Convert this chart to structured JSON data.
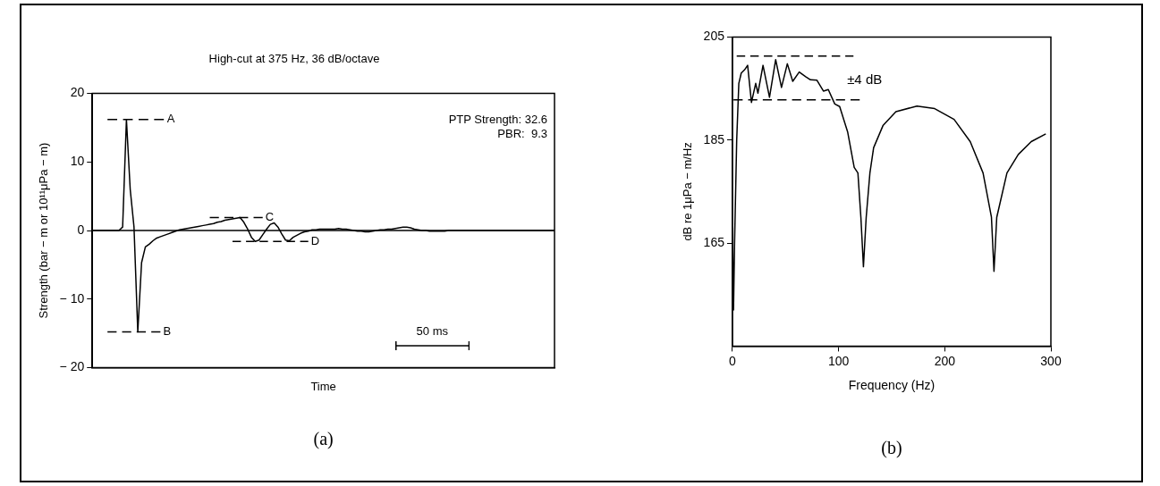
{
  "chart_data": [
    {
      "type": "line",
      "title": "High-cut at 375 Hz, 36 dB/octave",
      "xlabel": "Time",
      "ylabel": "Strength (bar − m or 10¹¹μPa − m)",
      "categories": [
        null,
        null,
        null,
        null,
        null,
        null,
        null,
        null,
        null,
        null,
        null,
        null,
        null,
        null,
        null,
        null,
        null,
        null,
        null,
        null,
        null,
        null,
        null,
        null,
        null,
        null,
        null,
        null,
        null,
        null,
        null,
        null,
        null,
        null,
        null,
        null,
        null,
        null,
        null,
        null,
        null,
        null,
        null,
        null,
        null,
        null,
        null,
        null,
        null,
        null,
        null,
        null,
        null,
        null,
        null,
        null,
        null,
        null,
        null,
        null,
        null,
        null,
        null,
        null,
        null,
        null,
        null,
        null,
        null,
        null,
        null,
        null,
        null,
        null,
        null,
        null,
        null,
        null,
        null,
        null,
        null,
        null,
        null,
        null,
        null,
        null,
        null,
        null,
        null,
        null,
        null,
        null,
        null,
        null,
        null,
        null,
        null,
        null,
        null,
        null,
        null,
        null,
        null,
        null,
        null,
        null,
        null,
        null,
        null,
        null,
        null,
        null,
        null,
        null,
        null,
        null,
        null,
        null,
        null,
        null,
        null,
        null,
        null
      ],
      "series": [
        {
          "color": "#000000",
          "values": [
            0,
            0,
            0,
            0,
            0,
            0,
            0,
            0,
            0.5,
            16.2,
            6,
            0.5,
            -14.8,
            -4.7,
            -2.4,
            -2,
            -1.5,
            -1.1,
            -0.9,
            -0.7,
            -0.5,
            -0.3,
            -0.1,
            0.1,
            0.2,
            0.3,
            0.4,
            0.5,
            0.6,
            0.7,
            0.8,
            0.9,
            1,
            1.2,
            1.3,
            1.5,
            1.6,
            1.7,
            1.8,
            1.9,
            1.2,
            0.2,
            -1,
            -1.6,
            -1.4,
            -0.6,
            0.2,
            0.9,
            1.1,
            0.5,
            -0.5,
            -1.4,
            -1.5,
            -1,
            -0.7,
            -0.4,
            -0.2,
            -0.1,
            0.1,
            0.1,
            0.2,
            0.2,
            0.2,
            0.2,
            0.2,
            0.3,
            0.2,
            0.2,
            0.1,
            0,
            -0.1,
            -0.1,
            -0.2,
            -0.2,
            -0.1,
            0,
            0.1,
            0.1,
            0.2,
            0.2,
            0.3,
            0.4,
            0.5,
            0.5,
            0.4,
            0.2,
            0.1,
            0,
            0,
            -0.1,
            -0.1,
            -0.1,
            -0.1,
            -0.1,
            0,
            0,
            0,
            0,
            0,
            0,
            0,
            0,
            0,
            0,
            0,
            0,
            0,
            0,
            0,
            0,
            0,
            0,
            0,
            0,
            0,
            0,
            0,
            0,
            0,
            0,
            0,
            0,
            0
          ]
        },
        {
          "name": "A",
          "color": "#000000",
          "line_style": "dashed",
          "values": [
            null,
            null,
            null,
            null,
            16.2,
            16.2,
            16.2,
            16.2,
            16.2,
            16.2,
            16.2,
            16.2,
            16.2,
            16.2,
            16.2,
            16.2,
            16.2,
            16.2,
            16.2,
            16.2,
            null,
            null,
            null,
            null,
            null,
            null,
            null,
            null,
            null,
            null,
            null,
            null,
            null,
            null,
            null,
            null,
            null,
            null,
            null,
            null,
            null,
            null,
            null,
            null,
            null,
            null,
            null,
            null,
            null,
            null,
            null,
            null,
            null,
            null,
            null,
            null,
            null,
            null,
            null,
            null,
            null,
            null,
            null,
            null,
            null,
            null,
            null,
            null,
            null,
            null,
            null,
            null,
            null,
            null,
            null,
            null,
            null,
            null,
            null,
            null,
            null,
            null,
            null,
            null,
            null,
            null,
            null,
            null,
            null,
            null,
            null,
            null,
            null,
            null,
            null,
            null,
            null,
            null,
            null,
            null,
            null,
            null,
            null,
            null,
            null,
            null,
            null,
            null,
            null,
            null,
            null,
            null,
            null,
            null,
            null,
            null,
            null,
            null,
            null,
            null,
            null,
            null,
            null
          ]
        },
        {
          "name": "B",
          "color": "#000000",
          "line_style": "dashed",
          "values": [
            null,
            null,
            null,
            null,
            -14.8,
            -14.8,
            -14.8,
            -14.8,
            -14.8,
            -14.8,
            -14.8,
            -14.8,
            -14.8,
            -14.8,
            -14.8,
            -14.8,
            -14.8,
            -14.8,
            -14.8,
            null,
            null,
            null,
            null,
            null,
            null,
            null,
            null,
            null,
            null,
            null,
            null,
            null,
            null,
            null,
            null,
            null,
            null,
            null,
            null,
            null,
            null,
            null,
            null,
            null,
            null,
            null,
            null,
            null,
            null,
            null,
            null,
            null,
            null,
            null,
            null,
            null,
            null,
            null,
            null,
            null,
            null,
            null,
            null,
            null,
            null,
            null,
            null,
            null,
            null,
            null,
            null,
            null,
            null,
            null,
            null,
            null,
            null,
            null,
            null,
            null,
            null,
            null,
            null,
            null,
            null,
            null,
            null,
            null,
            null,
            null,
            null,
            null,
            null,
            null,
            null,
            null,
            null,
            null,
            null,
            null,
            null,
            null,
            null,
            null,
            null,
            null,
            null,
            null,
            null,
            null,
            null,
            null,
            null,
            null,
            null,
            null,
            null,
            null,
            null,
            null,
            null,
            null,
            null
          ]
        },
        {
          "name": "C",
          "color": "#000000",
          "line_style": "dashed",
          "values": [
            null,
            null,
            null,
            null,
            null,
            null,
            null,
            null,
            null,
            null,
            null,
            null,
            null,
            null,
            null,
            null,
            null,
            null,
            null,
            null,
            null,
            null,
            null,
            null,
            null,
            null,
            null,
            null,
            null,
            null,
            null,
            1.9,
            1.9,
            1.9,
            1.9,
            1.9,
            1.9,
            1.9,
            1.9,
            1.9,
            1.9,
            1.9,
            1.9,
            1.9,
            1.9,
            1.9,
            null,
            null,
            null,
            null,
            null,
            null,
            null,
            null,
            null,
            null,
            null,
            null,
            null,
            null,
            null,
            null,
            null,
            null,
            null,
            null,
            null,
            null,
            null,
            null,
            null,
            null,
            null,
            null,
            null,
            null,
            null,
            null,
            null,
            null,
            null,
            null,
            null,
            null,
            null,
            null,
            null,
            null,
            null,
            null,
            null,
            null,
            null,
            null,
            null,
            null,
            null,
            null,
            null,
            null,
            null,
            null,
            null,
            null,
            null,
            null,
            null,
            null,
            null,
            null,
            null,
            null,
            null,
            null,
            null,
            null,
            null,
            null,
            null,
            null,
            null,
            null,
            null
          ]
        },
        {
          "name": "D",
          "color": "#000000",
          "line_style": "dashed",
          "values": [
            null,
            null,
            null,
            null,
            null,
            null,
            null,
            null,
            null,
            null,
            null,
            null,
            null,
            null,
            null,
            null,
            null,
            null,
            null,
            null,
            null,
            null,
            null,
            null,
            null,
            null,
            null,
            null,
            null,
            null,
            null,
            null,
            null,
            null,
            null,
            null,
            null,
            -1.6,
            -1.6,
            -1.6,
            -1.6,
            -1.6,
            -1.6,
            -1.6,
            -1.6,
            -1.6,
            -1.6,
            -1.6,
            -1.6,
            -1.6,
            -1.6,
            -1.6,
            -1.6,
            -1.6,
            -1.6,
            -1.6,
            -1.6,
            -1.6,
            null,
            null,
            null,
            null,
            null,
            null,
            null,
            null,
            null,
            null,
            null,
            null,
            null,
            null,
            null,
            null,
            null,
            null,
            null,
            null,
            null,
            null,
            null,
            null,
            null,
            null,
            null,
            null,
            null,
            null,
            null,
            null,
            null,
            null,
            null,
            null,
            null,
            null,
            null,
            null,
            null,
            null,
            null,
            null,
            null,
            null,
            null,
            null,
            null,
            null,
            null,
            null,
            null,
            null,
            null,
            null,
            null,
            null,
            null,
            null,
            null,
            null,
            null,
            null,
            null
          ]
        }
      ],
      "ylim": [
        -20,
        20
      ],
      "yticks": [
        {
          "value": -20,
          "label": "− 20"
        },
        {
          "value": -10,
          "label": "− 10"
        },
        0,
        10,
        20
      ],
      "ref_lines": [
        {
          "axis": "y",
          "value": 0,
          "color": "#000000",
          "line_style": "solid"
        }
      ],
      "annotations": [
        "PTP Strength: 32.6",
        "PBR:  9.3",
        "50 ms",
        "(a)"
      ],
      "tick_labels": "y",
      "grid": false,
      "legend": false,
      "marker": "none",
      "line_style": "solid"
    },
    {
      "type": "line",
      "xlabel": "Frequency (Hz)",
      "ylabel": "dB re 1μPa − m/Hz",
      "series": [
        {
          "color": "#000000",
          "x": [
            0,
            1,
            2,
            4,
            6,
            8.3,
            11.3,
            14.3,
            17.9,
            21.9,
            24,
            28.8,
            34.9,
            40.7,
            46.2,
            51.7,
            56.8,
            62.9,
            69,
            73.5,
            79.6,
            85.7,
            90.3,
            96.4,
            101,
            108.6,
            114.7,
            118.2,
            121,
            123.4,
            126,
            129.5,
            133,
            141.8,
            154,
            173.8,
            190.5,
            208.8,
            224,
            236.1,
            244,
            246.4,
            249,
            258.6,
            269.3,
            281.5,
            295.2
          ],
          "values": [
            168,
            152,
            165,
            185,
            196,
            198,
            198.6,
            199.5,
            192.3,
            196,
            194.1,
            199.5,
            193.3,
            200.6,
            195.2,
            199.8,
            196.4,
            198.2,
            197.3,
            196.7,
            196.6,
            194.5,
            194.8,
            192,
            191.5,
            186.5,
            179.7,
            178.6,
            170,
            160.4,
            170,
            178.6,
            183.5,
            187.8,
            190.5,
            191.6,
            191.1,
            189,
            184.7,
            178.6,
            170,
            159.5,
            170,
            178.6,
            182.2,
            184.7,
            186.2
          ]
        },
        {
          "color": "#000000",
          "line_style": "dashed",
          "x": [
            4,
            114
          ],
          "values": [
            201.3,
            201.3
          ]
        },
        {
          "color": "#000000",
          "line_style": "dashed",
          "x": [
            1,
            120
          ],
          "values": [
            192.8,
            192.8
          ]
        }
      ],
      "xlim": [
        0,
        300
      ],
      "xticks": [
        0,
        100,
        200,
        300
      ],
      "ylim": [
        145,
        205
      ],
      "yticks": [
        165,
        185,
        205
      ],
      "annotations": [
        "±4 dB",
        "(b)"
      ],
      "grid": false,
      "legend": false,
      "marker": "none",
      "line_style": "solid"
    }
  ]
}
